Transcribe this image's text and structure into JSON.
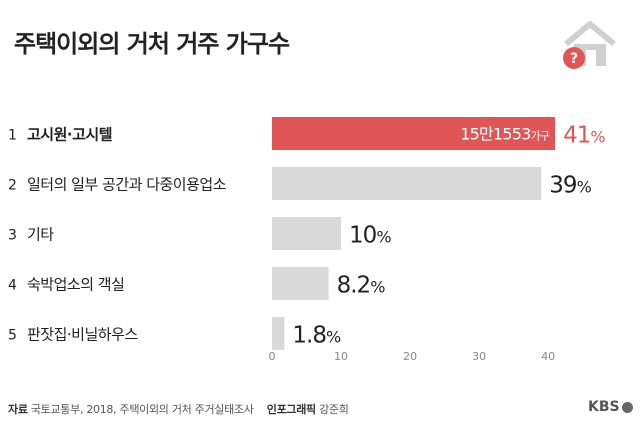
{
  "title": "주택이외의 거처 거주 가구수",
  "icons": {
    "house": "house-question-icon",
    "logo": "kbs-logo-icon"
  },
  "colors": {
    "highlight": "#e05555",
    "bar": "#d9d9d9",
    "text": "#222222"
  },
  "chart_data": {
    "type": "bar",
    "orientation": "horizontal",
    "categories": [
      "고시원·고시텔",
      "일터의 일부 공간과 다중이용업소",
      "기타",
      "숙박업소의 객실",
      "판잣집·비닐하우스"
    ],
    "ranks": [
      "1",
      "2",
      "3",
      "4",
      "5"
    ],
    "values": [
      41,
      39,
      10,
      8.2,
      1.8
    ],
    "value_labels": [
      "41",
      "39",
      "10",
      "8.2",
      "1.8"
    ],
    "unit": "%",
    "highlight_index": 0,
    "annotation": {
      "number": "15만1553",
      "unit": "가구"
    },
    "xlim": [
      0,
      42
    ],
    "xticks": [
      0,
      10,
      20,
      30,
      40
    ],
    "grid": false,
    "xlabel": "",
    "ylabel": ""
  },
  "footer": {
    "source_label": "자료",
    "source_text": "국토교통부, 2018, 주택이외의 거처 주거실태조사",
    "credit_label": "인포그래픽",
    "credit_name": "강준희"
  },
  "logo_text": "KBS"
}
